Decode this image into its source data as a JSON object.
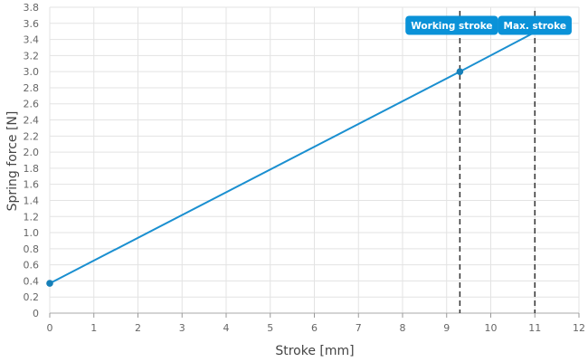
{
  "chart_data": {
    "type": "line",
    "xlabel": "Stroke [mm]",
    "ylabel": "Spring force [N]",
    "xlim": [
      0,
      12
    ],
    "ylim": [
      0,
      3.8
    ],
    "x_ticks": [
      "0",
      "1",
      "2",
      "3",
      "4",
      "5",
      "6",
      "7",
      "8",
      "9",
      "10",
      "11",
      "12"
    ],
    "y_ticks": [
      "0",
      "0.2",
      "0.4",
      "0.6",
      "0.8",
      "1.0",
      "1.2",
      "1.4",
      "1.6",
      "1.8",
      "2.0",
      "2.2",
      "2.4",
      "2.6",
      "2.8",
      "3.0",
      "3.2",
      "3.4",
      "3.6",
      "3.8"
    ],
    "grid": true,
    "series": [
      {
        "x": [
          0,
          9.3,
          11
        ],
        "y": [
          0.37,
          3.0,
          3.49
        ],
        "color": "#1a8fd0"
      }
    ],
    "points": [
      {
        "x": 0,
        "y": 0.37
      },
      {
        "x": 9.3,
        "y": 3.0
      }
    ],
    "markers": [
      {
        "x": 9.3,
        "label": "Working stroke"
      },
      {
        "x": 11,
        "label": "Max. stroke"
      }
    ],
    "colors": {
      "line": "#1a8fd0",
      "point": "#167fb8",
      "label_bg": "#0a92d8",
      "grid": "#e3e3e3",
      "marker_line": "#333333"
    }
  }
}
